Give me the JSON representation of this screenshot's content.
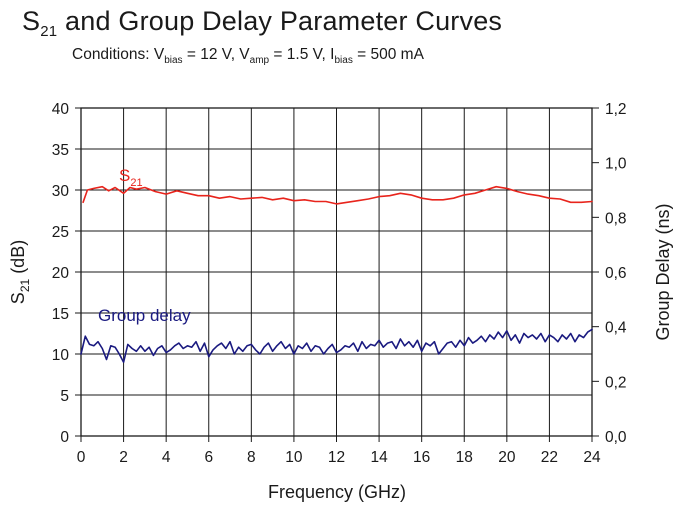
{
  "title": {
    "main_prefix": "S",
    "main_sub": "21",
    "main_suffix": " and Group Delay Parameter Curves"
  },
  "subtitle": {
    "prefix": "Conditions: V",
    "vbias_sub": "bias",
    "vbias_val": " = 12 V, V",
    "vamp_sub": "amp",
    "vamp_val": " = 1.5 V, I",
    "ibias_sub": "bias",
    "ibias_val": " = 500 mA"
  },
  "chart_data": {
    "type": "line",
    "xlabel": "Frequency (GHz)",
    "ylabel_left_prefix": "S",
    "ylabel_left_sub": "21",
    "ylabel_left_suffix": " (dB)",
    "ylabel_right": "Group Delay (ns)",
    "xlim": [
      0,
      24
    ],
    "ylim_left": [
      0,
      40
    ],
    "ylim_right": [
      0.0,
      1.2
    ],
    "x_ticks": [
      "0",
      "2",
      "4",
      "6",
      "8",
      "10",
      "12",
      "14",
      "16",
      "18",
      "20",
      "22",
      "24"
    ],
    "y_left_ticks": [
      "0",
      "5",
      "10",
      "15",
      "20",
      "25",
      "30",
      "35",
      "40"
    ],
    "y_right_ticks": [
      "0,0",
      "0,2",
      "0,4",
      "0,6",
      "0,8",
      "1,0",
      "1,2"
    ],
    "grid": true,
    "series": [
      {
        "name": "S21",
        "label_prefix": "S",
        "label_sub": "21",
        "axis": "left",
        "color": "#e8241c",
        "x": [
          0.1,
          0.3,
          0.6,
          1.0,
          1.3,
          1.6,
          2.0,
          2.3,
          2.6,
          3.0,
          3.5,
          4.0,
          4.5,
          5.0,
          5.5,
          6.0,
          6.5,
          7.0,
          7.5,
          8.0,
          8.5,
          9.0,
          9.5,
          10.0,
          10.5,
          11.0,
          11.5,
          12.0,
          12.5,
          13.0,
          13.5,
          14.0,
          14.5,
          15.0,
          15.5,
          16.0,
          16.5,
          17.0,
          17.5,
          18.0,
          18.5,
          19.0,
          19.5,
          20.0,
          20.5,
          21.0,
          21.5,
          22.0,
          22.5,
          23.0,
          23.5,
          24.0
        ],
        "values": [
          28.5,
          30.0,
          30.2,
          30.4,
          29.9,
          30.3,
          29.6,
          30.3,
          30.1,
          30.3,
          29.8,
          29.5,
          29.9,
          29.6,
          29.3,
          29.3,
          29.0,
          29.2,
          28.9,
          29.0,
          29.1,
          28.8,
          29.0,
          28.7,
          28.8,
          28.6,
          28.6,
          28.3,
          28.5,
          28.7,
          28.9,
          29.2,
          29.3,
          29.6,
          29.4,
          29.0,
          28.8,
          28.8,
          29.0,
          29.4,
          29.6,
          30.0,
          30.4,
          30.2,
          29.8,
          29.5,
          29.3,
          29.0,
          28.9,
          28.5,
          28.5,
          28.6
        ]
      },
      {
        "name": "Group delay",
        "axis": "right",
        "color": "#1a1a80",
        "x": [
          0.0,
          0.2,
          0.4,
          0.6,
          0.8,
          1.0,
          1.2,
          1.4,
          1.6,
          1.8,
          2.0,
          2.2,
          2.4,
          2.6,
          2.8,
          3.0,
          3.2,
          3.4,
          3.6,
          3.8,
          4.0,
          4.2,
          4.4,
          4.6,
          4.8,
          5.0,
          5.2,
          5.4,
          5.6,
          5.8,
          6.0,
          6.2,
          6.4,
          6.6,
          6.8,
          7.0,
          7.2,
          7.4,
          7.6,
          7.8,
          8.0,
          8.2,
          8.4,
          8.6,
          8.8,
          9.0,
          9.2,
          9.4,
          9.6,
          9.8,
          10.0,
          10.2,
          10.4,
          10.6,
          10.8,
          11.0,
          11.2,
          11.4,
          11.6,
          11.8,
          12.0,
          12.2,
          12.4,
          12.6,
          12.8,
          13.0,
          13.2,
          13.4,
          13.6,
          13.8,
          14.0,
          14.2,
          14.4,
          14.6,
          14.8,
          15.0,
          15.2,
          15.4,
          15.6,
          15.8,
          16.0,
          16.2,
          16.4,
          16.6,
          16.8,
          17.0,
          17.2,
          17.4,
          17.6,
          17.8,
          18.0,
          18.2,
          18.4,
          18.6,
          18.8,
          19.0,
          19.2,
          19.4,
          19.6,
          19.8,
          20.0,
          20.2,
          20.4,
          20.6,
          20.8,
          21.0,
          21.2,
          21.4,
          21.6,
          21.8,
          22.0,
          22.2,
          22.4,
          22.6,
          22.8,
          23.0,
          23.2,
          23.4,
          23.6,
          23.8,
          24.0
        ],
        "values": [
          0.3,
          0.365,
          0.335,
          0.33,
          0.345,
          0.32,
          0.28,
          0.33,
          0.325,
          0.3,
          0.27,
          0.335,
          0.32,
          0.31,
          0.33,
          0.31,
          0.325,
          0.295,
          0.32,
          0.33,
          0.305,
          0.315,
          0.33,
          0.34,
          0.32,
          0.33,
          0.325,
          0.345,
          0.31,
          0.34,
          0.29,
          0.315,
          0.33,
          0.34,
          0.32,
          0.345,
          0.3,
          0.325,
          0.31,
          0.33,
          0.335,
          0.315,
          0.3,
          0.325,
          0.34,
          0.31,
          0.33,
          0.345,
          0.32,
          0.335,
          0.3,
          0.33,
          0.32,
          0.34,
          0.31,
          0.33,
          0.325,
          0.3,
          0.32,
          0.335,
          0.305,
          0.315,
          0.33,
          0.325,
          0.34,
          0.31,
          0.345,
          0.32,
          0.335,
          0.33,
          0.35,
          0.325,
          0.34,
          0.345,
          0.32,
          0.355,
          0.33,
          0.345,
          0.325,
          0.35,
          0.31,
          0.34,
          0.33,
          0.345,
          0.3,
          0.32,
          0.34,
          0.345,
          0.325,
          0.35,
          0.33,
          0.36,
          0.34,
          0.35,
          0.365,
          0.345,
          0.37,
          0.355,
          0.38,
          0.36,
          0.385,
          0.35,
          0.37,
          0.34,
          0.375,
          0.36,
          0.37,
          0.355,
          0.375,
          0.345,
          0.37,
          0.36,
          0.345,
          0.37,
          0.355,
          0.375,
          0.345,
          0.37,
          0.36,
          0.38,
          0.39
        ]
      }
    ]
  },
  "colors": {
    "s21": "#e8241c",
    "group_delay": "#1a1a80",
    "grid": "#1a1a1a"
  }
}
